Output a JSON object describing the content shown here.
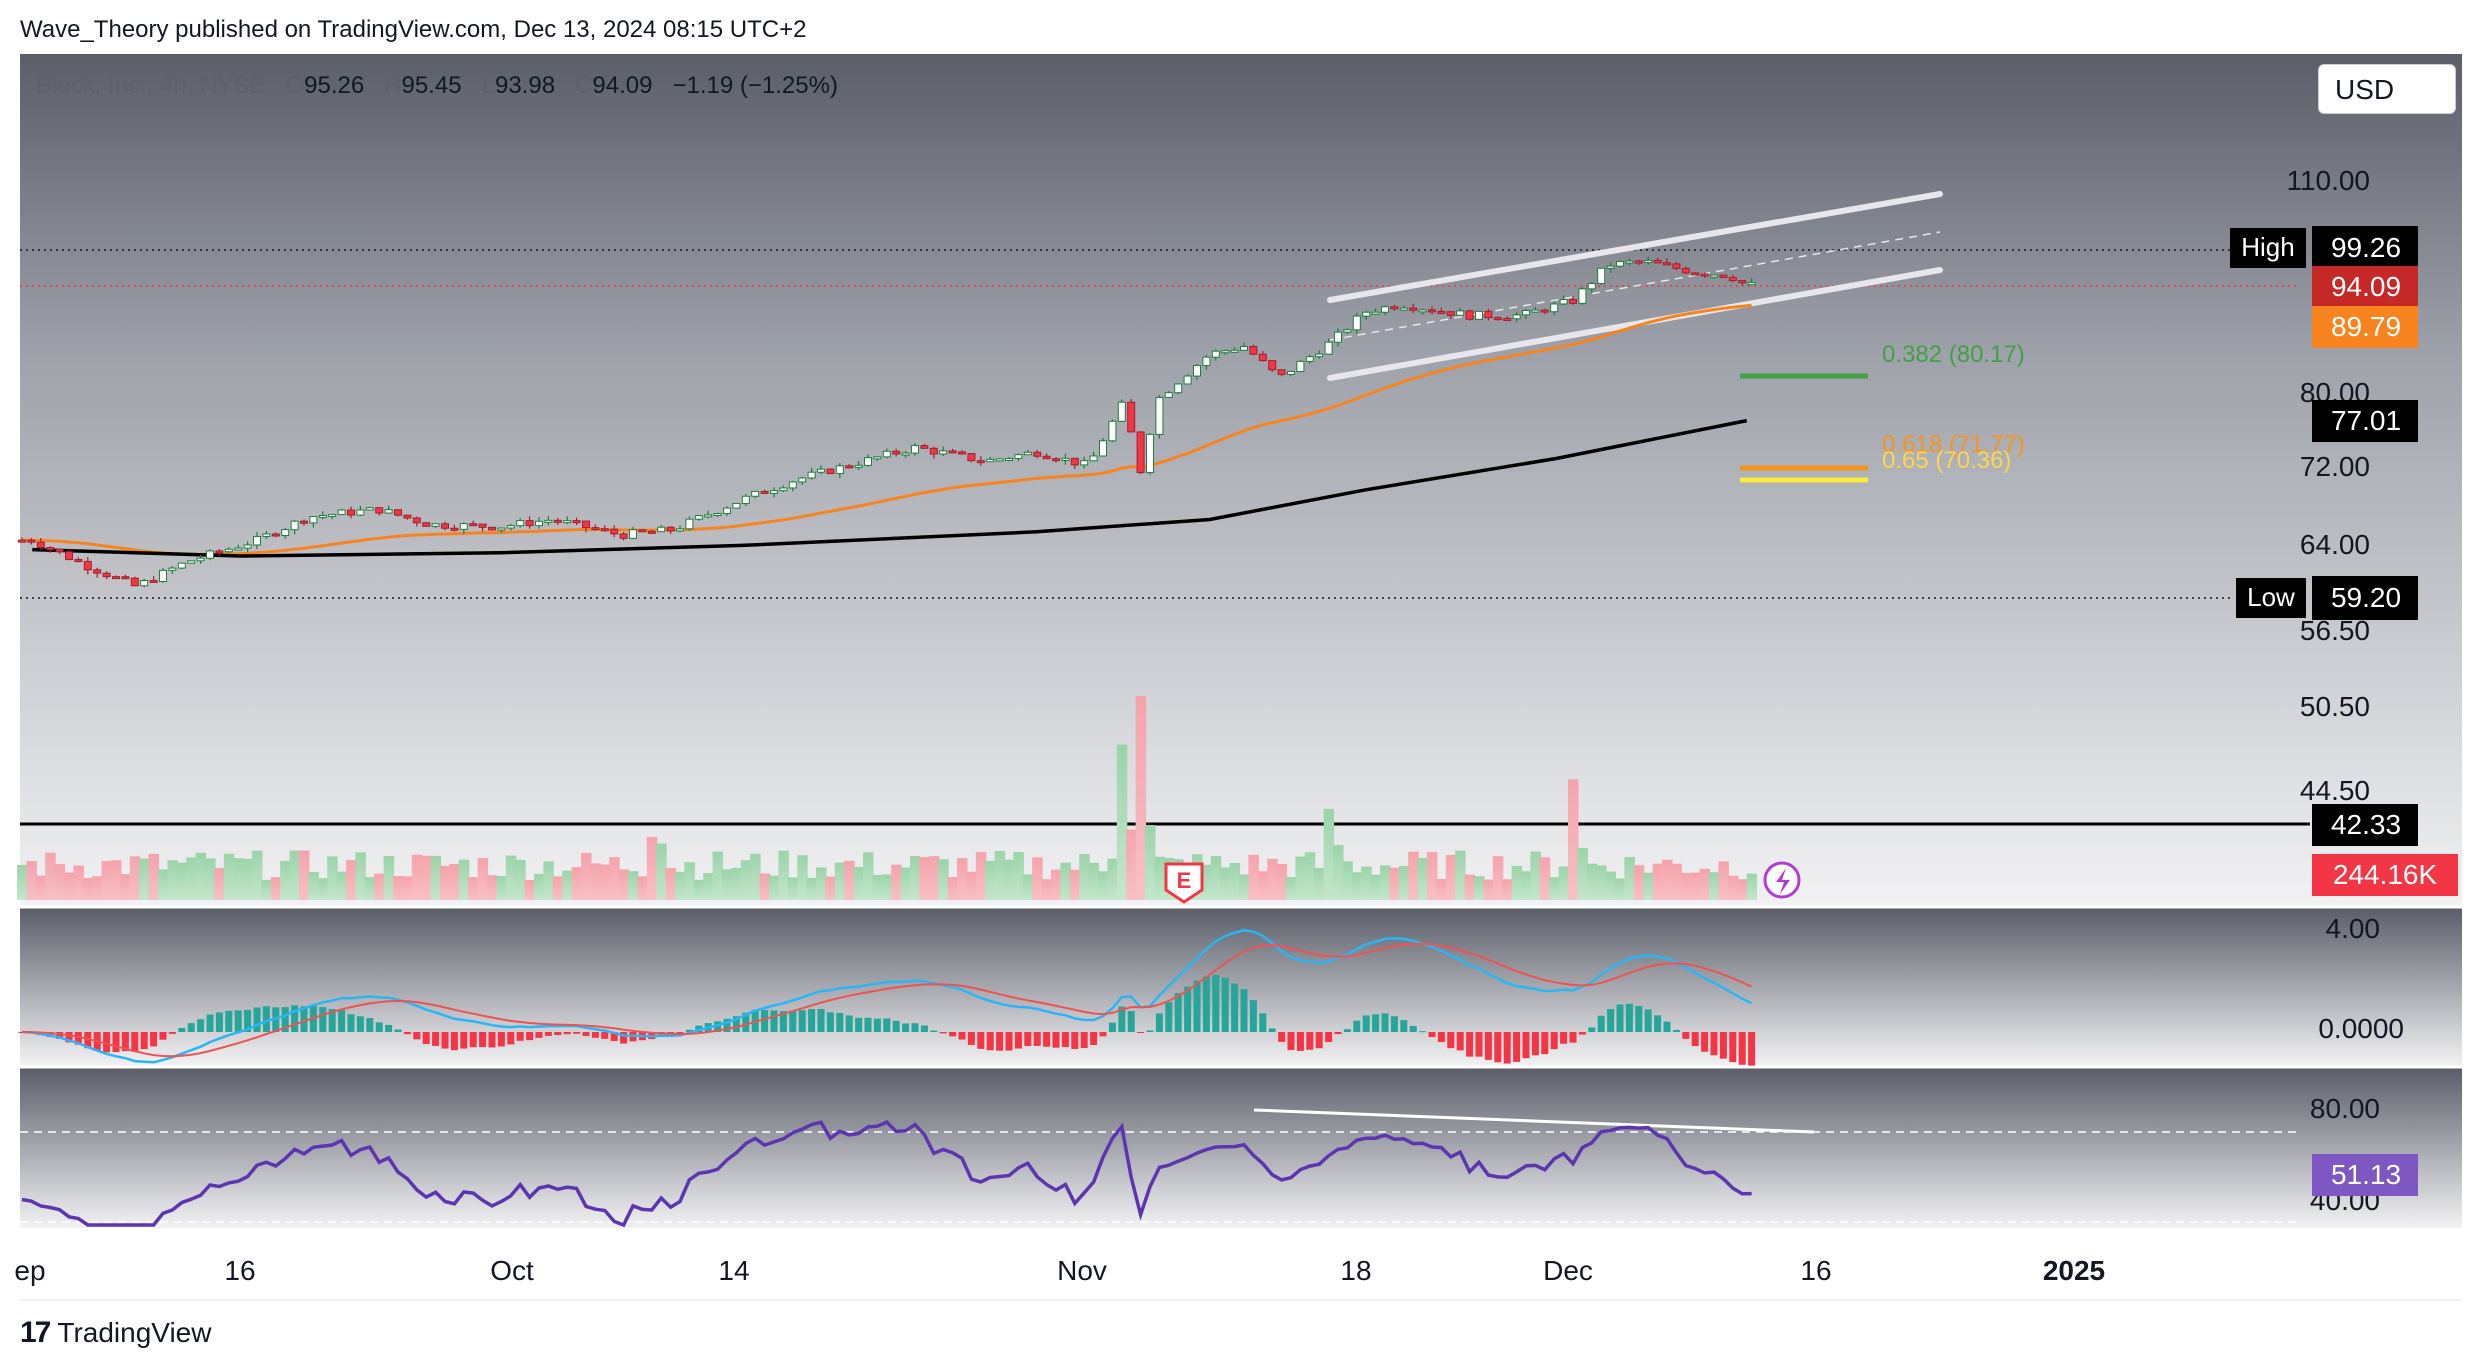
{
  "header": {
    "publisher_line": "Wave_Theory published on TradingView.com, Dec 13, 2024 08:15 UTC+2",
    "symbol": "Block, Inc., 4h, NYSE",
    "open_label": "O",
    "open": "95.26",
    "high_label": "H",
    "high": "95.45",
    "low_label": "L",
    "low": "93.98",
    "close_label": "C",
    "close": "94.09",
    "change": "−1.19 (−1.25%)",
    "currency_button": "USD"
  },
  "footer": {
    "brand": "TradingView",
    "brand_icon": "tradingview-logo-icon"
  },
  "colors": {
    "up": "#26a69a",
    "up_candle": "#22ab94",
    "down": "#f23645",
    "ema_orange": "#f7841f",
    "sma_black": "#000000",
    "channel": "#e6e6ec",
    "fib_green": "#43a047",
    "fib_orange": "#f7941d",
    "fib_yellow": "#ffeb3b",
    "rsi": "#7e57c2",
    "macd_line": "#29b6f6",
    "signal_line": "#ef5350"
  },
  "chart_data": {
    "type": "line",
    "title": "Block, Inc., 4h, NYSE",
    "x_tick_labels": [
      "ep",
      "16",
      "Oct",
      "14",
      "Nov",
      "18",
      "Dec",
      "16",
      "2025"
    ],
    "price_axis": {
      "ticks": [
        "110.00",
        "80.00",
        "72.00",
        "64.00",
        "56.50",
        "50.50",
        "44.50"
      ],
      "range": [
        40,
        115
      ],
      "scale": "log"
    },
    "price_series_approx": {
      "name": "price",
      "points": [
        [
          "Sep 4",
          64.5
        ],
        [
          "Sep 7",
          62.2
        ],
        [
          "Sep 10",
          60.2
        ],
        [
          "Sep 13",
          62.5
        ],
        [
          "Sep 17",
          64.5
        ],
        [
          "Sep 20",
          66.8
        ],
        [
          "Sep 24",
          67.5
        ],
        [
          "Sep 27",
          66.0
        ],
        [
          "Oct 1",
          65.8
        ],
        [
          "Oct 4",
          66.5
        ],
        [
          "Oct 8",
          65.0
        ],
        [
          "Oct 11",
          65.5
        ],
        [
          "Oct 15",
          68.5
        ],
        [
          "Oct 18",
          70.5
        ],
        [
          "Oct 22",
          72.5
        ],
        [
          "Oct 25",
          74.0
        ],
        [
          "Oct 29",
          72.5
        ],
        [
          "Nov 1",
          73.5
        ],
        [
          "Nov 4",
          72.0
        ],
        [
          "Nov 6",
          79.0
        ],
        [
          "Nov 7",
          71.5
        ],
        [
          "Nov 8",
          79.5
        ],
        [
          "Nov 11",
          85.0
        ],
        [
          "Nov 13",
          86.0
        ],
        [
          "Nov 15",
          82.0
        ],
        [
          "Nov 18",
          86.5
        ],
        [
          "Nov 20",
          90.5
        ],
        [
          "Nov 22",
          91.5
        ],
        [
          "Nov 26",
          90.0
        ],
        [
          "Nov 29",
          90.0
        ],
        [
          "Dec 2",
          92.0
        ],
        [
          "Dec 4",
          97.0
        ],
        [
          "Dec 6",
          97.5
        ],
        [
          "Dec 9",
          96.0
        ],
        [
          "Dec 11",
          95.5
        ],
        [
          "Dec 12",
          94.09
        ]
      ]
    },
    "levels": [
      {
        "label": "High",
        "value": "99.26"
      },
      {
        "label": "",
        "value": "94.09"
      },
      {
        "label": "",
        "value": "89.79"
      },
      {
        "label": "",
        "value": "77.01"
      },
      {
        "label": "Low",
        "value": "59.20"
      },
      {
        "label": "",
        "value": "42.33"
      }
    ],
    "fib_levels": [
      {
        "label": "0.382 (80.17)",
        "value": 80.17
      },
      {
        "label": "0.618 (71.77)",
        "value": 71.77
      },
      {
        "label": "0.65 (70.36)",
        "value": 70.36
      }
    ],
    "volume": {
      "last": "244.16K"
    },
    "earnings_marker": "E",
    "macd_axis_ticks": [
      "4.00",
      "0.0000"
    ],
    "rsi_axis_ticks": [
      "80.00",
      "40.00"
    ],
    "rsi_last": "51.13"
  }
}
